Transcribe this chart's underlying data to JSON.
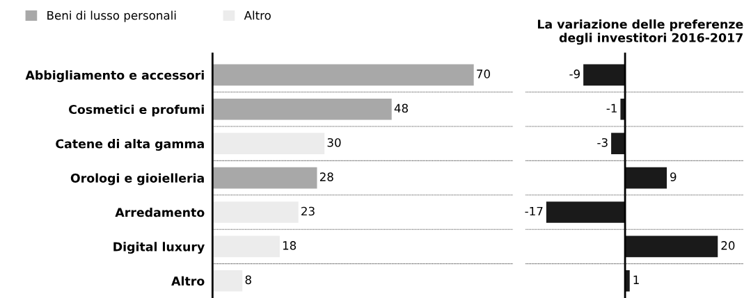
{
  "chart_data": [
    {
      "type": "bar",
      "orientation": "horizontal",
      "categories": [
        "Abbigliamento e accessori",
        "Cosmetici e profumi",
        "Catene di alta gamma",
        "Orologi e gioielleria",
        "Arredamento",
        "Digital luxury",
        "Altro"
      ],
      "series": [
        {
          "name": "Beni di lusso personali",
          "color": "#a8a8a8",
          "values": [
            70,
            48,
            null,
            28,
            null,
            null,
            null
          ]
        },
        {
          "name": "Altro",
          "color": "#ececec",
          "values": [
            null,
            null,
            30,
            null,
            23,
            18,
            8
          ]
        }
      ],
      "data_labels": true,
      "grid": "y",
      "legend": "top left",
      "tick_labels": "y"
    },
    {
      "type": "bar",
      "orientation": "horizontal",
      "title": "La variazione delle preferenze\ndegli investitori 2016-2017",
      "categories": [
        null,
        null,
        null,
        null,
        null,
        null,
        null
      ],
      "series": [
        {
          "color": "#1a1a1a",
          "values": [
            -9,
            -1,
            -3,
            9,
            -17,
            20,
            1
          ]
        }
      ],
      "data_labels": true,
      "grid": "y",
      "tick_labels": false
    }
  ]
}
